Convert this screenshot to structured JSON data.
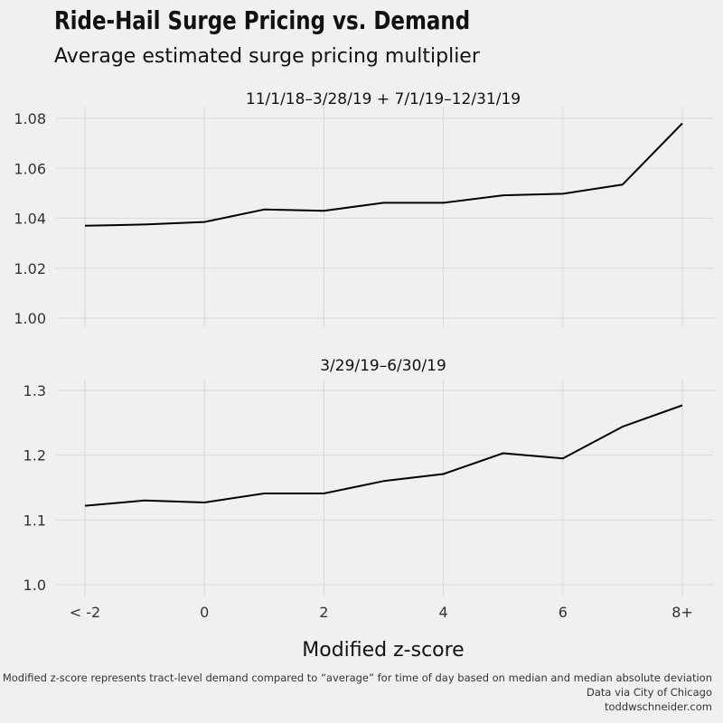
{
  "title": "Ride-Hail Surge Pricing vs. Demand",
  "subtitle": "Average estimated surge pricing multiplier",
  "xlabel": "Modified z-score",
  "caption": [
    "Modified z-score represents tract-level demand compared to “average” for time of day based on median and median absolute deviation",
    "Data via City of Chicago",
    "toddwschneider.com"
  ],
  "colors": {
    "background": "#f0f0f0",
    "grid": "#d9d9d9",
    "line": "#000000",
    "text": "#111111"
  },
  "chart_data": [
    {
      "type": "line",
      "title": "11/1/18–3/28/19 + 7/1/19–12/31/19",
      "x": [
        -2,
        -1,
        0,
        1,
        2,
        3,
        4,
        5,
        6,
        7,
        8
      ],
      "x_tick_values": [
        -2,
        0,
        2,
        4,
        6,
        8
      ],
      "x_tick_labels": [
        "< -2",
        "0",
        "2",
        "4",
        "6",
        "8+"
      ],
      "y": [
        1.037,
        1.0375,
        1.0385,
        1.0435,
        1.043,
        1.0462,
        1.0462,
        1.0492,
        1.0498,
        1.0535,
        1.078
      ],
      "y_ticks": [
        "1.00",
        "1.02",
        "1.04",
        "1.06",
        "1.08"
      ],
      "y_tick_values": [
        1.0,
        1.02,
        1.04,
        1.06,
        1.08
      ],
      "ylim": [
        1.0,
        1.08
      ],
      "xlim": [
        -2,
        8
      ],
      "grid": true
    },
    {
      "type": "line",
      "title": "3/29/19–6/30/19",
      "x": [
        -2,
        -1,
        0,
        1,
        2,
        3,
        4,
        5,
        6,
        7,
        8
      ],
      "x_tick_values": [
        -2,
        0,
        2,
        4,
        6,
        8
      ],
      "x_tick_labels": [
        "< -2",
        "0",
        "2",
        "4",
        "6",
        "8+"
      ],
      "y": [
        1.122,
        1.13,
        1.127,
        1.141,
        1.141,
        1.16,
        1.171,
        1.203,
        1.195,
        1.244,
        1.277
      ],
      "y_ticks": [
        "1.0",
        "1.1",
        "1.2",
        "1.3"
      ],
      "y_tick_values": [
        1.0,
        1.1,
        1.2,
        1.3
      ],
      "ylim": [
        1.0,
        1.3
      ],
      "xlim": [
        -2,
        8
      ],
      "grid": true
    }
  ]
}
